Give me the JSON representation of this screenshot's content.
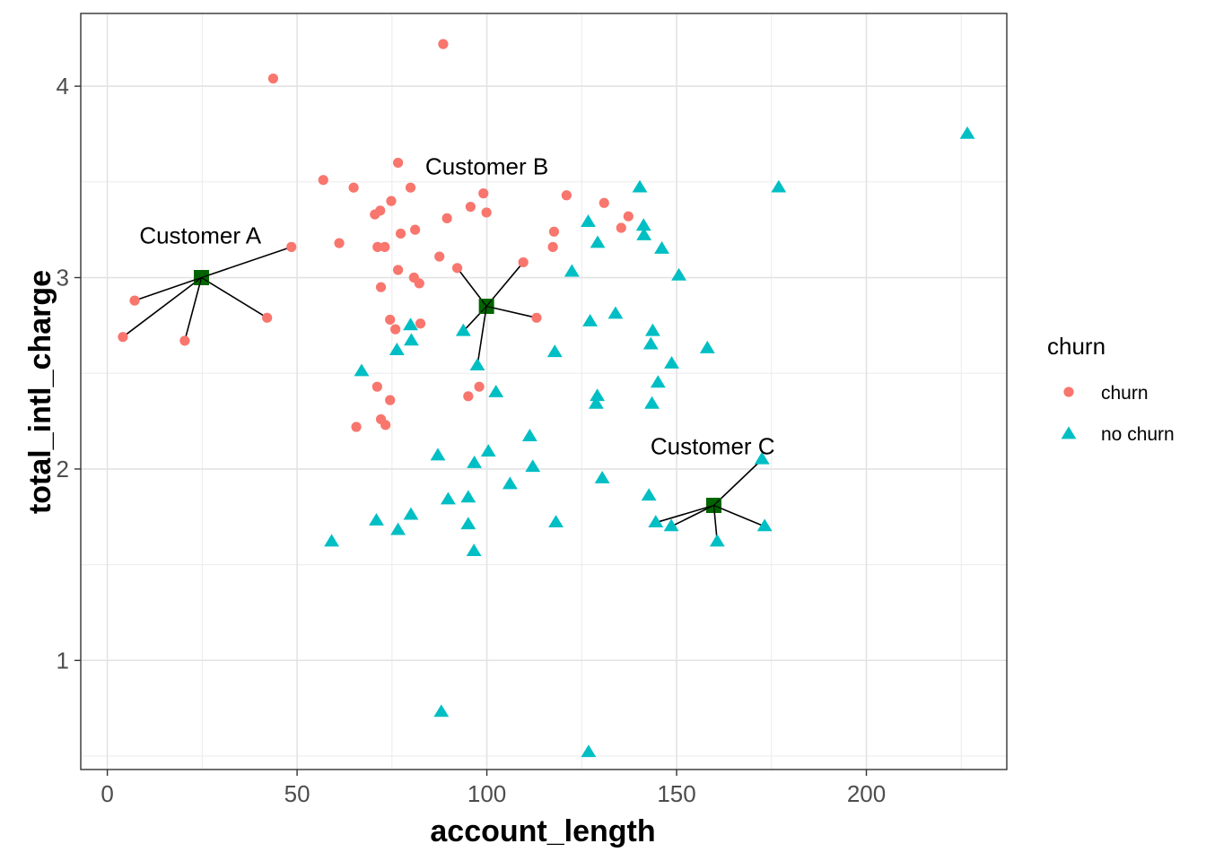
{
  "chart_data": {
    "type": "scatter",
    "xlabel": "account_length",
    "ylabel": "total_intl_charge",
    "xlim": [
      -7,
      237
    ],
    "ylim": [
      0.43,
      4.38
    ],
    "x_ticks": [
      0,
      50,
      100,
      150,
      200
    ],
    "x_tick_labels": [
      "0",
      "50",
      "100",
      "150",
      "200"
    ],
    "y_ticks": [
      1,
      2,
      3,
      4
    ],
    "y_tick_labels": [
      "1",
      "2",
      "3",
      "4"
    ],
    "grid": true,
    "legend": {
      "title": "churn",
      "placement": "right",
      "entries": [
        {
          "label": "churn",
          "shape": "circle",
          "color": "#F8766D"
        },
        {
          "label": "no churn",
          "shape": "triangle",
          "color": "#00BFC4"
        }
      ]
    },
    "series": [
      {
        "name": "churn",
        "shape": "circle",
        "color": "#F8766D",
        "points": [
          [
            88.5,
            4.22
          ],
          [
            43.7,
            4.04
          ],
          [
            76.6,
            3.6
          ],
          [
            56.9,
            3.51
          ],
          [
            64.9,
            3.47
          ],
          [
            79.9,
            3.47
          ],
          [
            99.1,
            3.44
          ],
          [
            74.8,
            3.4
          ],
          [
            121,
            3.43
          ],
          [
            95.7,
            3.37
          ],
          [
            130.9,
            3.39
          ],
          [
            71.9,
            3.35
          ],
          [
            70.5,
            3.33
          ],
          [
            99.9,
            3.34
          ],
          [
            137.3,
            3.32
          ],
          [
            89.5,
            3.31
          ],
          [
            135.4,
            3.26
          ],
          [
            81.1,
            3.25
          ],
          [
            77.3,
            3.23
          ],
          [
            117.7,
            3.24
          ],
          [
            61.1,
            3.18
          ],
          [
            71.2,
            3.16
          ],
          [
            73.1,
            3.16
          ],
          [
            117.4,
            3.16
          ],
          [
            48.5,
            3.16
          ],
          [
            87.5,
            3.11
          ],
          [
            109.6,
            3.08
          ],
          [
            92.2,
            3.05
          ],
          [
            76.6,
            3.04
          ],
          [
            80.8,
            3.0
          ],
          [
            82.2,
            2.97
          ],
          [
            72.1,
            2.95
          ],
          [
            7.2,
            2.88
          ],
          [
            42.1,
            2.79
          ],
          [
            113.1,
            2.79
          ],
          [
            74.5,
            2.78
          ],
          [
            82.5,
            2.76
          ],
          [
            75.9,
            2.73
          ],
          [
            4.1,
            2.69
          ],
          [
            20.4,
            2.67
          ],
          [
            71.1,
            2.43
          ],
          [
            98,
            2.43
          ],
          [
            95.1,
            2.38
          ],
          [
            74.5,
            2.36
          ],
          [
            72.1,
            2.26
          ],
          [
            73.3,
            2.23
          ],
          [
            65.6,
            2.22
          ]
        ]
      },
      {
        "name": "no churn",
        "shape": "triangle",
        "color": "#00BFC4",
        "points": [
          [
            226.6,
            3.75
          ],
          [
            140.3,
            3.47
          ],
          [
            176.9,
            3.47
          ],
          [
            126.7,
            3.29
          ],
          [
            141.3,
            3.27
          ],
          [
            141.4,
            3.22
          ],
          [
            129.2,
            3.18
          ],
          [
            146.1,
            3.15
          ],
          [
            122.4,
            3.03
          ],
          [
            150.6,
            3.01
          ],
          [
            133.9,
            2.81
          ],
          [
            127.2,
            2.77
          ],
          [
            79.9,
            2.75
          ],
          [
            143.7,
            2.72
          ],
          [
            93.8,
            2.72
          ],
          [
            80.1,
            2.67
          ],
          [
            143.2,
            2.65
          ],
          [
            158.1,
            2.63
          ],
          [
            76.3,
            2.62
          ],
          [
            117.9,
            2.61
          ],
          [
            148.7,
            2.55
          ],
          [
            97.5,
            2.54
          ],
          [
            67,
            2.51
          ],
          [
            145.1,
            2.45
          ],
          [
            102.4,
            2.4
          ],
          [
            129.1,
            2.38
          ],
          [
            128.8,
            2.34
          ],
          [
            143.5,
            2.34
          ],
          [
            111.3,
            2.17
          ],
          [
            100.4,
            2.09
          ],
          [
            87.1,
            2.07
          ],
          [
            172.5,
            2.05
          ],
          [
            96.7,
            2.03
          ],
          [
            112.1,
            2.01
          ],
          [
            130.4,
            1.95
          ],
          [
            106.1,
            1.92
          ],
          [
            142.7,
            1.86
          ],
          [
            89.8,
            1.84
          ],
          [
            95.1,
            1.85
          ],
          [
            80,
            1.76
          ],
          [
            70.9,
            1.73
          ],
          [
            118.2,
            1.72
          ],
          [
            95.1,
            1.71
          ],
          [
            144.5,
            1.72
          ],
          [
            148.6,
            1.7
          ],
          [
            173.2,
            1.7
          ],
          [
            76.6,
            1.68
          ],
          [
            59.1,
            1.62
          ],
          [
            160.7,
            1.62
          ],
          [
            96.6,
            1.57
          ],
          [
            88,
            0.73
          ],
          [
            126.8,
            0.52
          ]
        ]
      }
    ],
    "highlighted": [
      {
        "label": "Customer A",
        "x": 24.8,
        "y": 3.0,
        "neighbors": [
          [
            7.2,
            2.88
          ],
          [
            4.1,
            2.69
          ],
          [
            20.4,
            2.67
          ],
          [
            42.1,
            2.79
          ],
          [
            48.5,
            3.16
          ]
        ],
        "label_at": [
          24.5,
          3.22
        ]
      },
      {
        "label": "Customer B",
        "x": 99.9,
        "y": 2.85,
        "neighbors": [
          [
            92.2,
            3.05
          ],
          [
            109.6,
            3.08
          ],
          [
            113.1,
            2.79
          ],
          [
            97.5,
            2.54
          ],
          [
            93.8,
            2.72
          ]
        ],
        "label_at": [
          100,
          3.58
        ]
      },
      {
        "label": "Customer C",
        "x": 159.8,
        "y": 1.81,
        "neighbors": [
          [
            172.5,
            2.05
          ],
          [
            144.5,
            1.72
          ],
          [
            148.6,
            1.7
          ],
          [
            173.2,
            1.7
          ],
          [
            160.7,
            1.62
          ]
        ],
        "label_at": [
          159.5,
          2.12
        ]
      }
    ],
    "highlight_color": "#006400"
  }
}
